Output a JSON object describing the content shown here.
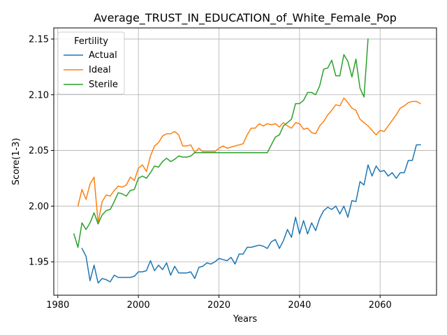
{
  "chart_data": {
    "type": "line",
    "title": "Average_TRUST_IN_EDUCATION_of_White_Female_Pop",
    "xlabel": "Years",
    "ylabel": "Score(1-3)",
    "xlim": [
      1979,
      2074
    ],
    "ylim": [
      1.92,
      2.16
    ],
    "xticks": [
      1980,
      2000,
      2020,
      2040,
      2060
    ],
    "yticks": [
      1.95,
      2.0,
      2.05,
      2.1,
      2.15
    ],
    "ytick_labels": [
      "1.95",
      "2.00",
      "2.05",
      "2.10",
      "2.15"
    ],
    "grid": true,
    "legend": {
      "title": "Fertility",
      "position": "top-left"
    },
    "series": [
      {
        "name": "Actual",
        "color": "#1f77b4",
        "x": [
          1986,
          1987,
          1988,
          1989,
          1990,
          1991,
          1992,
          1993,
          1994,
          1995,
          1996,
          1997,
          1998,
          1999,
          2000,
          2001,
          2002,
          2003,
          2004,
          2005,
          2006,
          2007,
          2008,
          2009,
          2010,
          2011,
          2012,
          2013,
          2014,
          2015,
          2016,
          2017,
          2018,
          2019,
          2020,
          2021,
          2022,
          2023,
          2024,
          2025,
          2026,
          2027,
          2028,
          2029,
          2030,
          2031,
          2032,
          2033,
          2034,
          2035,
          2036,
          2037,
          2038,
          2039,
          2040,
          2041,
          2042,
          2043,
          2044,
          2045,
          2046,
          2047,
          2048,
          2049,
          2050,
          2051,
          2052,
          2053,
          2054,
          2055,
          2056,
          2057,
          2058,
          2059,
          2060,
          2061,
          2062,
          2063,
          2064,
          2065,
          2066,
          2067,
          2068,
          2069,
          2070
        ],
        "values": [
          1.962,
          1.955,
          1.933,
          1.947,
          1.931,
          1.935,
          1.934,
          1.932,
          1.938,
          1.936,
          1.936,
          1.936,
          1.936,
          1.937,
          1.941,
          1.941,
          1.942,
          1.951,
          1.942,
          1.947,
          1.943,
          1.949,
          1.938,
          1.946,
          1.94,
          1.94,
          1.94,
          1.941,
          1.935,
          1.945,
          1.946,
          1.949,
          1.948,
          1.95,
          1.953,
          1.952,
          1.951,
          1.954,
          1.948,
          1.957,
          1.957,
          1.963,
          1.963,
          1.964,
          1.965,
          1.964,
          1.962,
          1.968,
          1.97,
          1.962,
          1.969,
          1.979,
          1.972,
          1.99,
          1.975,
          1.987,
          1.975,
          1.985,
          1.978,
          1.989,
          1.996,
          1.999,
          1.997,
          2.0,
          1.993,
          2.0,
          1.99,
          2.005,
          2.004,
          2.022,
          2.019,
          2.037,
          2.027,
          2.036,
          2.031,
          2.032,
          2.027,
          2.03,
          2.025,
          2.03,
          2.03,
          2.041,
          2.041,
          2.055,
          2.055
        ]
      },
      {
        "name": "Ideal",
        "color": "#ff7f0e",
        "x": [
          1985,
          1986,
          1987,
          1988,
          1989,
          1990,
          1991,
          1992,
          1993,
          1994,
          1995,
          1996,
          1997,
          1998,
          1999,
          2000,
          2001,
          2002,
          2003,
          2004,
          2005,
          2006,
          2007,
          2008,
          2009,
          2010,
          2011,
          2012,
          2013,
          2014,
          2015,
          2016,
          2017,
          2018,
          2019,
          2020,
          2021,
          2022,
          2023,
          2024,
          2025,
          2026,
          2027,
          2028,
          2029,
          2030,
          2031,
          2032,
          2033,
          2034,
          2035,
          2036,
          2037,
          2038,
          2039,
          2040,
          2041,
          2042,
          2043,
          2044,
          2045,
          2046,
          2047,
          2048,
          2049,
          2050,
          2051,
          2052,
          2053,
          2054,
          2055,
          2056,
          2057,
          2058,
          2059,
          2060,
          2061,
          2062,
          2063,
          2064,
          2065,
          2066,
          2067,
          2068,
          2069,
          2070
        ],
        "values": [
          2.0,
          2.015,
          2.006,
          2.02,
          2.026,
          1.985,
          2.004,
          2.01,
          2.009,
          2.014,
          2.018,
          2.017,
          2.019,
          2.026,
          2.023,
          2.034,
          2.037,
          2.031,
          2.045,
          2.054,
          2.057,
          2.063,
          2.065,
          2.065,
          2.067,
          2.064,
          2.054,
          2.054,
          2.055,
          2.048,
          2.052,
          2.049,
          2.049,
          2.049,
          2.049,
          2.052,
          2.054,
          2.052,
          2.053,
          2.054,
          2.055,
          2.056,
          2.064,
          2.07,
          2.07,
          2.074,
          2.072,
          2.074,
          2.073,
          2.074,
          2.071,
          2.075,
          2.072,
          2.07,
          2.075,
          2.074,
          2.069,
          2.07,
          2.066,
          2.065,
          2.072,
          2.076,
          2.082,
          2.086,
          2.091,
          2.09,
          2.097,
          2.093,
          2.088,
          2.086,
          2.078,
          2.075,
          2.072,
          2.068,
          2.064,
          2.068,
          2.067,
          2.072,
          2.077,
          2.082,
          2.088,
          2.09,
          2.093,
          2.094,
          2.094,
          2.092
        ]
      },
      {
        "name": "Sterile",
        "color": "#2ca02c",
        "x": [
          1984,
          1985,
          1986,
          1987,
          1988,
          1989,
          1990,
          1991,
          1992,
          1993,
          1994,
          1995,
          1996,
          1997,
          1998,
          1999,
          2000,
          2001,
          2002,
          2003,
          2004,
          2005,
          2006,
          2007,
          2008,
          2009,
          2010,
          2011,
          2012,
          2013,
          2014,
          2015,
          2016,
          2017,
          2018,
          2019,
          2020,
          2021,
          2022,
          2023,
          2024,
          2025,
          2026,
          2027,
          2028,
          2029,
          2030,
          2031,
          2032,
          2033,
          2034,
          2035,
          2036,
          2037,
          2038,
          2039,
          2040,
          2041,
          2042,
          2043,
          2044,
          2045,
          2046,
          2047,
          2048,
          2049,
          2050,
          2051,
          2052,
          2053,
          2054,
          2055,
          2056,
          2057
        ],
        "values": [
          1.975,
          1.963,
          1.985,
          1.979,
          1.985,
          1.994,
          1.984,
          1.992,
          1.996,
          1.997,
          2.004,
          2.012,
          2.011,
          2.009,
          2.014,
          2.015,
          2.025,
          2.027,
          2.025,
          2.03,
          2.036,
          2.035,
          2.04,
          2.043,
          2.04,
          2.042,
          2.045,
          2.044,
          2.044,
          2.045,
          2.048,
          2.048,
          2.048,
          2.048,
          2.048,
          2.048,
          2.048,
          2.048,
          2.048,
          2.048,
          2.048,
          2.048,
          2.048,
          2.048,
          2.048,
          2.048,
          2.048,
          2.048,
          2.048,
          2.055,
          2.062,
          2.064,
          2.072,
          2.075,
          2.078,
          2.092,
          2.092,
          2.095,
          2.102,
          2.102,
          2.1,
          2.108,
          2.123,
          2.124,
          2.131,
          2.117,
          2.117,
          2.136,
          2.13,
          2.116,
          2.132,
          2.106,
          2.098,
          2.15
        ]
      }
    ]
  }
}
